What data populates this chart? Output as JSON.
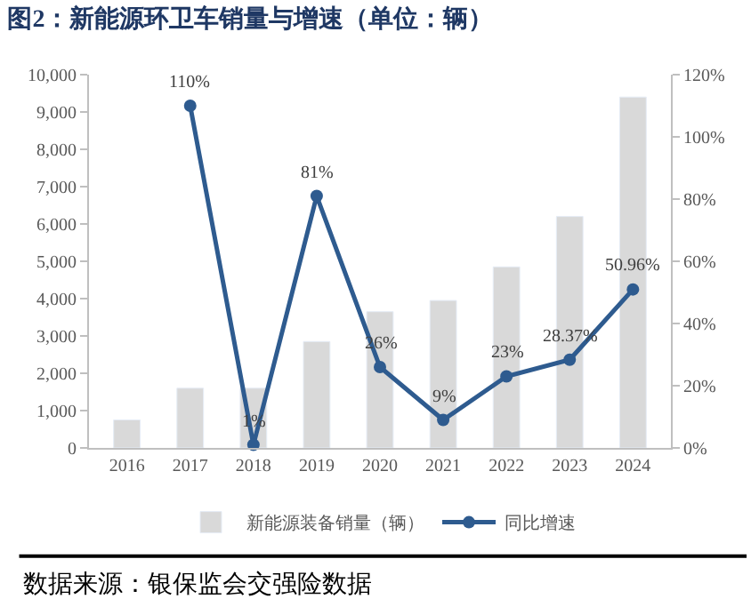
{
  "chart_data": {
    "type": "bar",
    "title": "图2：新能源环卫车销量与增速（单位：辆）",
    "categories": [
      "2016",
      "2017",
      "2018",
      "2019",
      "2020",
      "2021",
      "2022",
      "2023",
      "2024"
    ],
    "series": [
      {
        "name": "新能源装备销量（辆）",
        "color": "#d9d9d9",
        "values": [
          750,
          1600,
          1600,
          2850,
          3650,
          3950,
          4850,
          6200,
          9400
        ]
      },
      {
        "name": "同比增速",
        "type": "line",
        "axis": "y2",
        "color": "#2e5b8f",
        "marker": "circle",
        "values": [
          null,
          110,
          1,
          81,
          26,
          9,
          23,
          28.37,
          50.96
        ],
        "value_labels": [
          null,
          "110%",
          "1%",
          "81%",
          "26%",
          "9%",
          "23%",
          "28.37%",
          "50.96%"
        ]
      }
    ],
    "ylim": [
      0,
      10000
    ],
    "yticks": [
      {
        "value": 0,
        "label": "0"
      },
      {
        "value": 1000,
        "label": "1,000"
      },
      {
        "value": 2000,
        "label": "2,000"
      },
      {
        "value": 3000,
        "label": "3,000"
      },
      {
        "value": 4000,
        "label": "4,000"
      },
      {
        "value": 5000,
        "label": "5,000"
      },
      {
        "value": 6000,
        "label": "6,000"
      },
      {
        "value": 7000,
        "label": "7,000"
      },
      {
        "value": 8000,
        "label": "8,000"
      },
      {
        "value": 9000,
        "label": "9,000"
      },
      {
        "value": 10000,
        "label": "10,000"
      }
    ],
    "y2lim": [
      0,
      120
    ],
    "y2ticks": [
      {
        "value": 0,
        "label": "0%"
      },
      {
        "value": 20,
        "label": "20%"
      },
      {
        "value": 40,
        "label": "40%"
      },
      {
        "value": 60,
        "label": "60%"
      },
      {
        "value": 80,
        "label": "80%"
      },
      {
        "value": 100,
        "label": "100%"
      },
      {
        "value": 120,
        "label": "120%"
      }
    ],
    "legend": "bottom",
    "annotations": [
      "数据来源：银保监会交强险数据"
    ]
  }
}
